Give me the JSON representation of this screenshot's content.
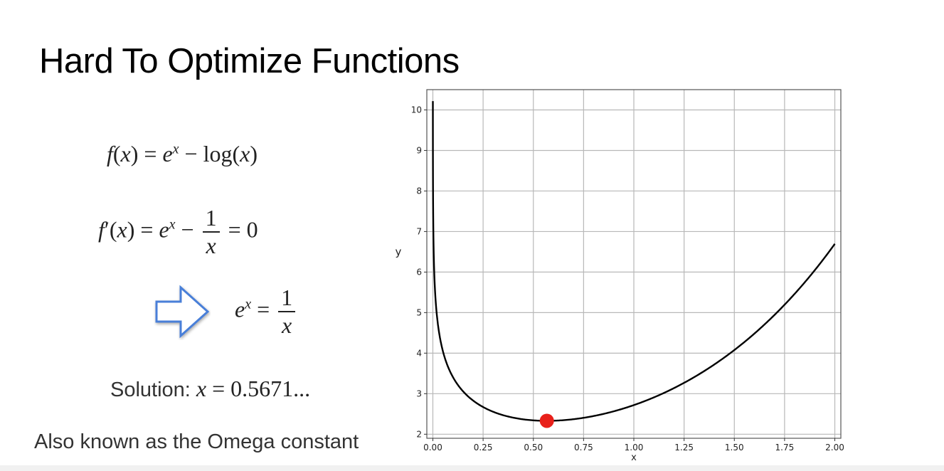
{
  "slide": {
    "title": "Hard To Optimize Functions",
    "solution_label": "Solution:",
    "solution_value": "0.5671...",
    "omega_text": "Also known as the Omega constant"
  },
  "icons": {
    "arrow": "right-arrow-outline-icon",
    "arrow_color": "#4a7fd8"
  },
  "chart_data": {
    "type": "line",
    "function": "y = e^x - log(x)",
    "xlabel": "x",
    "ylabel": "y",
    "xlim": [
      -0.03,
      2.03
    ],
    "ylim": [
      1.9,
      10.5
    ],
    "xticks": [
      0.0,
      0.25,
      0.5,
      0.75,
      1.0,
      1.25,
      1.5,
      1.75,
      2.0
    ],
    "xtick_labels": [
      "0.00",
      "0.25",
      "0.50",
      "0.75",
      "1.00",
      "1.25",
      "1.50",
      "1.75",
      "2.00"
    ],
    "yticks": [
      2,
      3,
      4,
      5,
      6,
      7,
      8,
      9,
      10
    ],
    "ytick_labels": [
      "2",
      "3",
      "4",
      "5",
      "6",
      "7",
      "8",
      "9",
      "10"
    ],
    "grid": true,
    "line_color": "#000000",
    "marker": {
      "x": 0.5671,
      "y": 2.3303,
      "color": "#e8201a"
    },
    "x_range": [
      0.0002,
      2.0
    ]
  }
}
